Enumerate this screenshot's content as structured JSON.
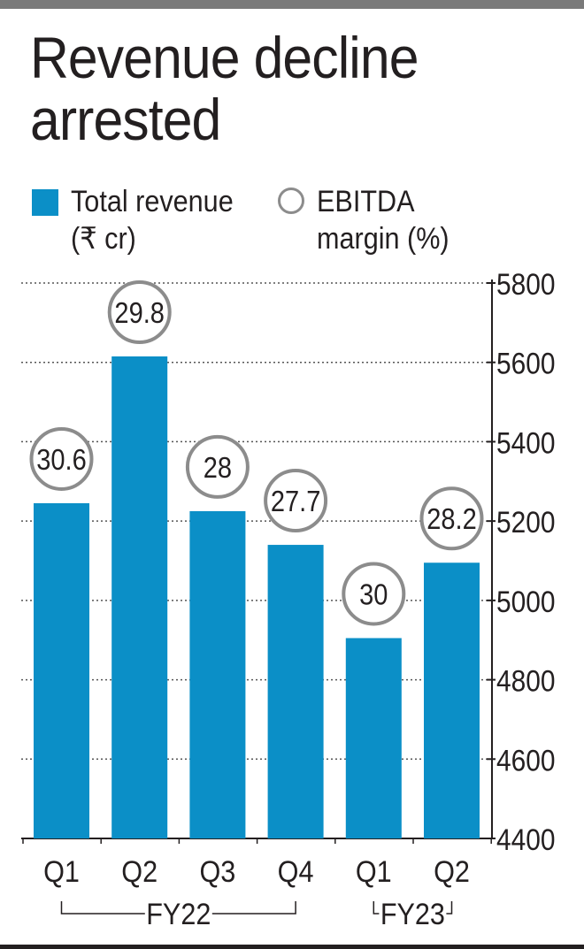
{
  "title": "Revenue decline arrested",
  "legend": {
    "revenue_line1": "Total revenue",
    "revenue_line2": "(₹ cr)",
    "margin_line1": "EBITDA",
    "margin_line2": "margin (%)"
  },
  "colors": {
    "bar": "#0b8fc7",
    "ring": "#8c8c8c",
    "text": "#231f20",
    "grid": "#555555"
  },
  "chart_data": {
    "type": "bar",
    "categories": [
      "Q1",
      "Q2",
      "Q3",
      "Q4",
      "Q1",
      "Q2"
    ],
    "groups": [
      {
        "label": "FY22",
        "from": 0,
        "to": 3
      },
      {
        "label": "FY23",
        "from": 4,
        "to": 5
      }
    ],
    "series": [
      {
        "name": "Total revenue (₹ cr)",
        "values": [
          5245,
          5615,
          5225,
          5140,
          4905,
          5095
        ]
      },
      {
        "name": "EBITDA margin (%)",
        "values": [
          30.6,
          29.8,
          28,
          27.7,
          30,
          28.2
        ]
      }
    ],
    "margin_labels": [
      "30.6",
      "29.8",
      "28",
      "27.7",
      "30",
      "28.2"
    ],
    "ylim": [
      4400,
      5800
    ],
    "yticks": [
      4400,
      4600,
      4800,
      5000,
      5200,
      5400,
      5600,
      5800
    ],
    "ytick_labels": [
      "4400",
      "4600",
      "4800",
      "5000",
      "5200",
      "5400",
      "5600",
      "5800"
    ],
    "grid": true,
    "axis_position": "right",
    "legend_position": "top"
  }
}
